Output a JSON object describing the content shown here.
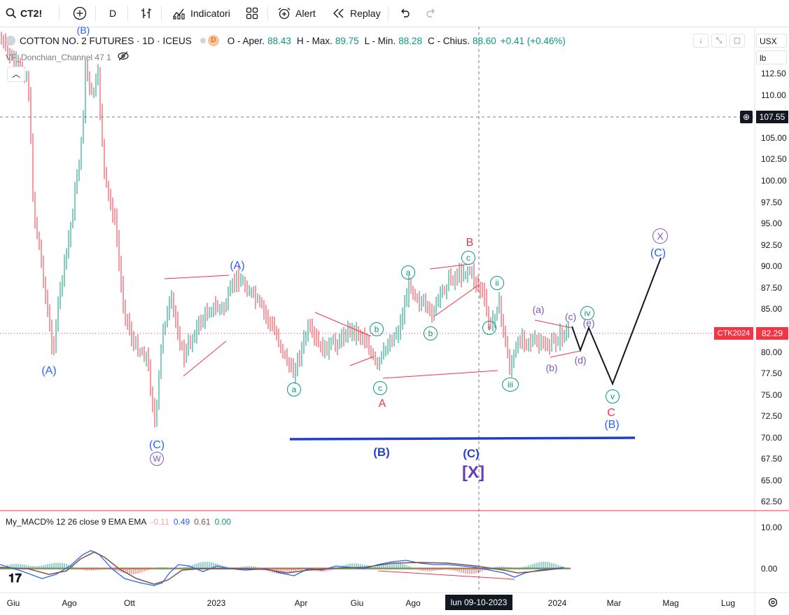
{
  "toolbar": {
    "symbol": "CT2!",
    "interval": "D",
    "indicators": "Indicatori",
    "alert": "Alert",
    "replay": "Replay"
  },
  "legend": {
    "title": "COTTON NO. 2 FUTURES · 1D · ICEUS",
    "badge": "D",
    "o_lbl": "O - Aper.",
    "o_val": "88.43",
    "h_lbl": "H - Max.",
    "h_val": "89.75",
    "l_lbl": "L - Min.",
    "l_val": "88.28",
    "c_lbl": "C - Chius.",
    "c_val": "88.60",
    "change": "+0.41 (+0.46%)",
    "indicator": "VF_Donchian_Channel 47 1",
    "macd_label": "My_MACD% 12 26 close 9 EMA EMA",
    "macd_v1": "-0.11",
    "macd_v2": "0.49",
    "macd_v3": "0.61",
    "macd_v4": "0.00"
  },
  "price_scale": {
    "currency": "USX",
    "unit": "lb",
    "ticks": [
      "112.50",
      "110.00",
      "107.55",
      "105.00",
      "102.50",
      "100.00",
      "97.50",
      "95.00",
      "92.50",
      "90.00",
      "87.50",
      "85.00",
      "82.29",
      "80.00",
      "77.50",
      "75.00",
      "72.50",
      "70.00",
      "67.50",
      "65.00",
      "62.50"
    ],
    "crosshair_price": "107.55",
    "last_price": "82.29",
    "last_tag": "CTK2024",
    "macd_ticks": [
      "10.00",
      "0.00"
    ]
  },
  "time_scale": {
    "labels": [
      "Giu",
      "Ago",
      "Ott",
      "2023",
      "Apr",
      "Giu",
      "Ago",
      "2024",
      "Mar",
      "Mag",
      "Lug"
    ],
    "crosshair_date": "lun 09-10-2023"
  },
  "wave_labels": {
    "A_top": "(A)",
    "A_left": "(A)",
    "B_top": "(B)",
    "C_w": "(C)",
    "W": "W",
    "a1": "a",
    "b1": "b",
    "c1": "c",
    "A_red": "A",
    "a2": "a",
    "c2": "c",
    "B_red": "B",
    "i": "i",
    "ii": "ii",
    "iii": "iii",
    "iv": "iv",
    "v": "v",
    "pa": "(a)",
    "pb": "(b)",
    "pc": "(c)",
    "pd": "(d)",
    "pe": "(e)",
    "B_mid": "(B)",
    "C_mid": "(C)",
    "X_mid": "[X]",
    "C_red": "C",
    "B_right": "(B)",
    "C_right": "(C)",
    "X_right": "X"
  },
  "colors": {
    "up": "#089981",
    "down": "#f23645",
    "wave_blue": "#2962ff",
    "support_line": "#1f3fd1",
    "purple": "#7e57c2"
  }
}
